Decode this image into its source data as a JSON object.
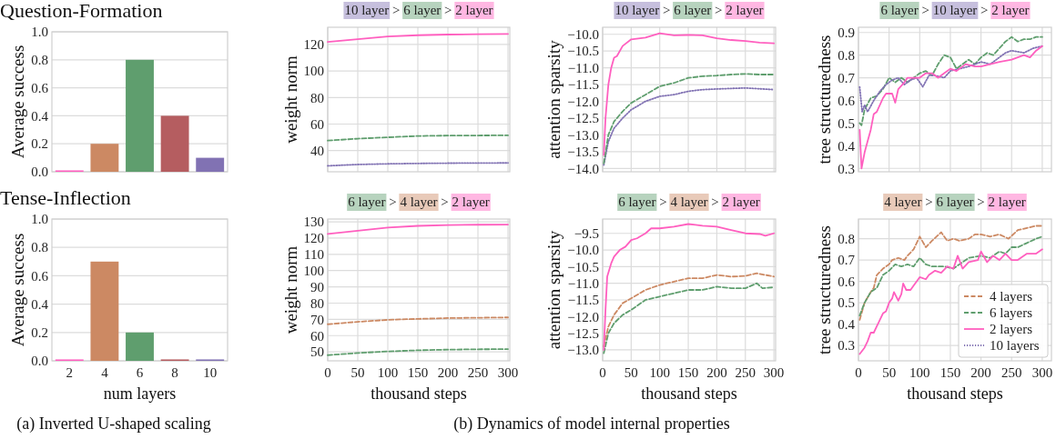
{
  "chart_data": [
    {
      "type": "bar",
      "title": "Question-Formation",
      "ylabel": "Average success",
      "categories": [
        null,
        null,
        null,
        null,
        null
      ],
      "values": [
        0.01,
        0.2,
        0.8,
        0.4,
        0.1
      ],
      "colors": [
        "#ff5fbf",
        "#cc8963",
        "#5f9e6e",
        "#b55d60",
        "#8172b3"
      ],
      "ylim": [
        0,
        1
      ],
      "yticks": [
        {
          "value": 0,
          "label": "0.0"
        },
        0.2,
        0.4,
        0.6,
        0.8,
        {
          "value": 1,
          "label": "1.0"
        }
      ],
      "grid": "y",
      "tick_labels": "y"
    },
    {
      "type": "line",
      "title": "10 layer > 6 layer > 2 layer",
      "ylabel": "weight norm",
      "xlim": [
        0,
        303
      ],
      "xticks": [
        0,
        50,
        100,
        150,
        200,
        250,
        300
      ],
      "ylim": [
        24,
        133
      ],
      "yticks": [
        40,
        60,
        80,
        100,
        120
      ],
      "grid": true,
      "tick_labels": "y",
      "series": [
        {
          "color": "#8172b3",
          "line_style": "dotted",
          "x": [
            0,
            50,
            100,
            150,
            200,
            250,
            300
          ],
          "values": [
            28.5,
            29.5,
            30,
            30.3,
            30.5,
            30.6,
            30.7
          ]
        },
        {
          "color": "#5f9e6e",
          "line_style": "dashed",
          "x": [
            0,
            50,
            100,
            150,
            200,
            250,
            300
          ],
          "values": [
            47.5,
            49,
            50,
            51,
            51.3,
            51.4,
            51.5
          ]
        },
        {
          "color": "#ff5fbf",
          "line_style": "solid",
          "x": [
            0,
            50,
            100,
            150,
            200,
            250,
            300
          ],
          "values": [
            122,
            124,
            126,
            127,
            127.5,
            127.8,
            128
          ]
        }
      ]
    },
    {
      "type": "line",
      "title": "10 layer > 6 layer > 2 layer",
      "ylabel": "attention sparsity",
      "xlim": [
        0,
        303
      ],
      "xticks": [
        0,
        50,
        100,
        150,
        200,
        250,
        300
      ],
      "ylim": [
        -14.1,
        -9.79
      ],
      "yticks": [
        {
          "value": -14,
          "label": "−14.0"
        },
        {
          "value": -13.5,
          "label": "−13.5"
        },
        {
          "value": -13,
          "label": "−13.0"
        },
        {
          "value": -12.5,
          "label": "−12.5"
        },
        {
          "value": -12,
          "label": "−12.0"
        },
        {
          "value": -11.5,
          "label": "−11.5"
        },
        {
          "value": -11,
          "label": "−11.0"
        },
        {
          "value": -10.5,
          "label": "−10.5"
        },
        {
          "value": -10,
          "label": "−10.0"
        }
      ],
      "grid": true,
      "tick_labels": "y",
      "series": [
        {
          "color": "#8172b3",
          "line_style": "dotted",
          "x": [
            2,
            10,
            20,
            35,
            50,
            75,
            100,
            125,
            150,
            175,
            200,
            250,
            300
          ],
          "values": [
            -13.9,
            -13.2,
            -12.8,
            -12.5,
            -12.25,
            -12.0,
            -11.85,
            -11.8,
            -11.7,
            -11.65,
            -11.63,
            -11.6,
            -11.65
          ]
        },
        {
          "color": "#5f9e6e",
          "line_style": "dashed",
          "x": [
            2,
            10,
            20,
            35,
            50,
            75,
            100,
            125,
            150,
            175,
            200,
            225,
            250,
            275,
            300
          ],
          "values": [
            -13.85,
            -13,
            -12.6,
            -12.3,
            -12.05,
            -11.8,
            -11.55,
            -11.45,
            -11.3,
            -11.25,
            -11.23,
            -11.2,
            -11.18,
            -11.2,
            -11.2
          ]
        },
        {
          "color": "#ff5fbf",
          "line_style": "solid",
          "x": [
            2,
            5,
            10,
            15,
            20,
            25,
            35,
            50,
            75,
            100,
            125,
            150,
            175,
            200,
            225,
            250,
            275,
            300
          ],
          "values": [
            -13.6,
            -12.5,
            -11.5,
            -11.0,
            -10.7,
            -10.65,
            -10.35,
            -10.15,
            -10.1,
            -9.97,
            -10.03,
            -10.02,
            -10.03,
            -10.12,
            -10.17,
            -10.2,
            -10.25,
            -10.27
          ]
        }
      ]
    },
    {
      "type": "line",
      "title": "6 layer > 10 layer > 2 layer",
      "ylabel": "tree structuredness",
      "xlim": [
        0,
        315
      ],
      "xticks": [
        0,
        50,
        100,
        150,
        200,
        250,
        300
      ],
      "ylim": [
        0.285,
        0.923
      ],
      "yticks": [
        0.3,
        0.4,
        0.5,
        0.6,
        0.7,
        0.8,
        0.9
      ],
      "grid": true,
      "tick_labels": "y",
      "series": [
        {
          "color": "#5f9e6e",
          "line_style": "dashed",
          "x": [
            2,
            5,
            10,
            20,
            30,
            40,
            50,
            60,
            70,
            80,
            90,
            100,
            110,
            120,
            130,
            140,
            150,
            160,
            170,
            180,
            190,
            200,
            210,
            220,
            230,
            240,
            250,
            260,
            270,
            280,
            290,
            300
          ],
          "values": [
            0.5,
            0.49,
            0.56,
            0.61,
            0.62,
            0.65,
            0.7,
            0.68,
            0.7,
            0.68,
            0.7,
            0.72,
            0.73,
            0.71,
            0.76,
            0.8,
            0.79,
            0.74,
            0.76,
            0.78,
            0.76,
            0.79,
            0.81,
            0.8,
            0.83,
            0.86,
            0.88,
            0.86,
            0.87,
            0.87,
            0.88,
            0.88
          ]
        },
        {
          "color": "#8172b3",
          "line_style": "dotted",
          "x": [
            2,
            6,
            10,
            15,
            25,
            35,
            45,
            55,
            65,
            75,
            85,
            95,
            105,
            115,
            125,
            140,
            150,
            165,
            180,
            200,
            215,
            230,
            240,
            250,
            270,
            285,
            300
          ],
          "values": [
            0.66,
            0.55,
            0.58,
            0.55,
            0.6,
            0.64,
            0.67,
            0.69,
            0.7,
            0.67,
            0.69,
            0.7,
            0.66,
            0.71,
            0.71,
            0.7,
            0.73,
            0.74,
            0.75,
            0.77,
            0.76,
            0.79,
            0.81,
            0.82,
            0.81,
            0.83,
            0.84
          ]
        },
        {
          "color": "#ff5fbf",
          "line_style": "solid",
          "x": [
            2,
            5,
            10,
            15,
            20,
            25,
            30,
            40,
            45,
            55,
            60,
            65,
            75,
            80,
            90,
            100,
            110,
            120,
            130,
            140,
            150,
            160,
            175,
            190,
            200,
            215,
            230,
            250,
            270,
            280,
            290,
            300
          ],
          "values": [
            0.47,
            0.3,
            0.37,
            0.42,
            0.47,
            0.54,
            0.55,
            0.61,
            0.63,
            0.63,
            0.59,
            0.65,
            0.68,
            0.7,
            0.7,
            0.7,
            0.72,
            0.72,
            0.7,
            0.72,
            0.74,
            0.73,
            0.76,
            0.75,
            0.75,
            0.76,
            0.77,
            0.78,
            0.8,
            0.79,
            0.82,
            0.84
          ]
        }
      ]
    },
    {
      "type": "bar",
      "title": "Tense-Inflection",
      "ylabel": "Average success",
      "xlabel": "num layers",
      "categories": [
        "2",
        "4",
        "6",
        "8",
        "10"
      ],
      "values": [
        0.01,
        0.7,
        0.2,
        0.01,
        0.01
      ],
      "colors": [
        "#ff5fbf",
        "#cc8963",
        "#5f9e6e",
        "#b55d60",
        "#8172b3"
      ],
      "ylim": [
        0,
        1
      ],
      "yticks": [
        {
          "value": 0,
          "label": "0.0"
        },
        0.2,
        0.4,
        0.6,
        0.8,
        {
          "value": 1,
          "label": "1.0"
        }
      ],
      "grid": "y",
      "annotations": [
        "(a) Inverted U-shaped scaling"
      ]
    },
    {
      "type": "line",
      "title": "6 layer > 4 layer > 2 layer",
      "ylabel": "weight norm",
      "xlabel": "thousand steps",
      "xlim": [
        0,
        303
      ],
      "xticks": [
        0,
        50,
        100,
        150,
        200,
        250,
        300
      ],
      "ylim": [
        44.5,
        131.7
      ],
      "yticks": [
        50,
        60,
        70,
        80,
        90,
        100,
        110,
        120,
        130
      ],
      "grid": true,
      "series": [
        {
          "color": "#5f9e6e",
          "line_style": "dashed",
          "x": [
            0,
            50,
            100,
            150,
            200,
            250,
            300
          ],
          "values": [
            48,
            49.3,
            50.3,
            51,
            51.4,
            51.6,
            51.7
          ]
        },
        {
          "color": "#cc8963",
          "line_style": "dashed",
          "x": [
            0,
            50,
            100,
            150,
            200,
            250,
            300
          ],
          "values": [
            67,
            68.5,
            69.7,
            70.3,
            70.8,
            71,
            71.2
          ]
        },
        {
          "color": "#ff5fbf",
          "line_style": "solid",
          "x": [
            0,
            50,
            100,
            150,
            200,
            250,
            300
          ],
          "values": [
            122.5,
            124.5,
            126.5,
            127.5,
            128,
            128.2,
            128.3
          ]
        }
      ]
    },
    {
      "type": "line",
      "title": "6 layer > 4 layer > 2 layer",
      "ylabel": "attention sparsity",
      "xlabel": "thousand steps",
      "xlim": [
        0,
        303
      ],
      "xticks": [
        0,
        50,
        100,
        150,
        200,
        250,
        300
      ],
      "ylim": [
        -13.33,
        -9.07
      ],
      "yticks": [
        {
          "value": -13,
          "label": "−13.0"
        },
        {
          "value": -12.5,
          "label": "−12.5"
        },
        {
          "value": -12,
          "label": "−12.0"
        },
        {
          "value": -11.5,
          "label": "−11.5"
        },
        {
          "value": -11,
          "label": "−11.0"
        },
        {
          "value": -10.5,
          "label": "−10.5"
        },
        {
          "value": -10,
          "label": "−10.0"
        },
        {
          "value": -9.5,
          "label": "−9.5"
        }
      ],
      "grid": true,
      "annotations": [
        "(b) Dynamics of model internal properties"
      ],
      "series": [
        {
          "color": "#5f9e6e",
          "line_style": "dashed",
          "x": [
            2,
            10,
            20,
            35,
            50,
            75,
            100,
            125,
            150,
            175,
            200,
            225,
            250,
            270,
            280,
            300
          ],
          "values": [
            -13.1,
            -12.5,
            -12.2,
            -11.95,
            -11.8,
            -11.5,
            -11.4,
            -11.3,
            -11.2,
            -11.2,
            -11.1,
            -11.15,
            -11.15,
            -11.0,
            -11.15,
            -11.12
          ]
        },
        {
          "color": "#cc8963",
          "line_style": "dashed",
          "x": [
            2,
            10,
            20,
            35,
            50,
            75,
            100,
            125,
            150,
            175,
            200,
            225,
            250,
            270,
            300
          ],
          "values": [
            -12.9,
            -12.3,
            -11.95,
            -11.6,
            -11.45,
            -11.2,
            -11.05,
            -10.95,
            -10.85,
            -10.85,
            -10.75,
            -10.8,
            -10.78,
            -10.7,
            -10.8
          ]
        },
        {
          "color": "#ff5fbf",
          "line_style": "solid",
          "x": [
            2,
            5,
            8,
            15,
            20,
            30,
            40,
            50,
            60,
            75,
            85,
            100,
            125,
            150,
            175,
            200,
            225,
            250,
            275,
            285,
            300
          ],
          "values": [
            -13.0,
            -11.8,
            -10.8,
            -10.4,
            -10.2,
            -10.0,
            -9.9,
            -9.7,
            -9.65,
            -9.5,
            -9.35,
            -9.35,
            -9.3,
            -9.22,
            -9.27,
            -9.3,
            -9.4,
            -9.5,
            -9.52,
            -9.57,
            -9.5
          ]
        }
      ]
    },
    {
      "type": "line",
      "title": "4 layer > 6 layer > 2 layer",
      "ylabel": "tree structuredness",
      "xlabel": "thousand steps",
      "xlim": [
        0,
        315
      ],
      "xticks": [
        0,
        50,
        100,
        150,
        200,
        250,
        300
      ],
      "ylim": [
        0.228,
        0.892
      ],
      "yticks": [
        0.3,
        0.4,
        0.5,
        0.6,
        0.7,
        0.8
      ],
      "grid": true,
      "legend": "bottom right",
      "series": [
        {
          "name": "4 layers",
          "color": "#cc8963",
          "line_style": "dashed",
          "x": [
            2,
            10,
            20,
            25,
            30,
            40,
            50,
            55,
            65,
            75,
            80,
            90,
            100,
            110,
            120,
            135,
            145,
            155,
            165,
            180,
            190,
            200,
            215,
            230,
            245,
            260,
            275,
            290,
            300
          ],
          "values": [
            0.42,
            0.5,
            0.55,
            0.57,
            0.63,
            0.66,
            0.68,
            0.7,
            0.71,
            0.7,
            0.72,
            0.75,
            0.81,
            0.76,
            0.79,
            0.83,
            0.79,
            0.8,
            0.79,
            0.8,
            0.82,
            0.82,
            0.81,
            0.82,
            0.8,
            0.84,
            0.85,
            0.86,
            0.86
          ]
        },
        {
          "name": "6 layers",
          "color": "#5f9e6e",
          "line_style": "dashed",
          "x": [
            2,
            10,
            20,
            30,
            40,
            50,
            60,
            70,
            80,
            90,
            100,
            110,
            120,
            140,
            155,
            170,
            180,
            200,
            215,
            230,
            240,
            250,
            260,
            275,
            290,
            300
          ],
          "values": [
            0.44,
            0.5,
            0.55,
            0.57,
            0.63,
            0.65,
            0.68,
            0.67,
            0.68,
            0.67,
            0.71,
            0.68,
            0.67,
            0.67,
            0.66,
            0.69,
            0.71,
            0.72,
            0.71,
            0.74,
            0.73,
            0.76,
            0.76,
            0.78,
            0.8,
            0.81
          ]
        },
        {
          "name": "2 layers",
          "color": "#ff5fbf",
          "line_style": "solid",
          "x": [
            2,
            10,
            15,
            20,
            25,
            30,
            35,
            40,
            45,
            50,
            55,
            58,
            65,
            70,
            73,
            78,
            85,
            90,
            100,
            110,
            115,
            125,
            135,
            145,
            155,
            162,
            170,
            180,
            195,
            200,
            210,
            220,
            230,
            240,
            250,
            260,
            275,
            290,
            300
          ],
          "values": [
            0.26,
            0.29,
            0.32,
            0.36,
            0.36,
            0.39,
            0.42,
            0.45,
            0.46,
            0.5,
            0.52,
            0.55,
            0.51,
            0.54,
            0.59,
            0.56,
            0.56,
            0.58,
            0.62,
            0.61,
            0.63,
            0.65,
            0.64,
            0.67,
            0.66,
            0.72,
            0.66,
            0.69,
            0.7,
            0.74,
            0.69,
            0.72,
            0.7,
            0.73,
            0.7,
            0.7,
            0.73,
            0.73,
            0.75
          ]
        },
        {
          "name": "10 layers",
          "color": "#8172b3",
          "line_style": "dotted"
        }
      ]
    }
  ]
}
